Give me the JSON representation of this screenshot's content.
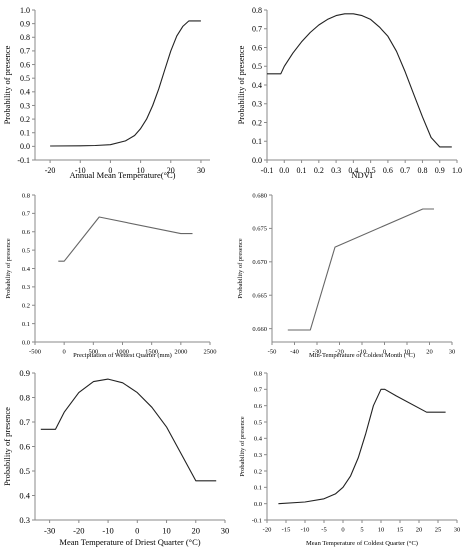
{
  "chart_data": [
    {
      "type": "line",
      "xlabel": "Annual Mean Temperature(°C)",
      "ylabel": "Probability of presence",
      "xlim": [
        -25,
        33
      ],
      "ylim": [
        -0.1,
        1.0
      ],
      "xticks": [
        -20,
        -10,
        0,
        10,
        20,
        30
      ],
      "yticks": [
        -0.1,
        0.0,
        0.1,
        0.2,
        0.3,
        0.4,
        0.5,
        0.6,
        0.7,
        0.8,
        0.9,
        1.0
      ],
      "x": [
        -20,
        -10,
        -5,
        0,
        5,
        8,
        10,
        12,
        14,
        16,
        18,
        20,
        22,
        24,
        26,
        30
      ],
      "y": [
        0.003,
        0.004,
        0.006,
        0.012,
        0.04,
        0.08,
        0.13,
        0.2,
        0.3,
        0.42,
        0.56,
        0.7,
        0.81,
        0.88,
        0.92,
        0.92
      ]
    },
    {
      "type": "line",
      "xlabel": "NDVI",
      "ylabel": "Probability of presence",
      "xlim": [
        -0.1,
        1.0
      ],
      "ylim": [
        0.0,
        0.8
      ],
      "xticks": [
        -0.1,
        0.0,
        0.1,
        0.2,
        0.3,
        0.4,
        0.5,
        0.6,
        0.7,
        0.8,
        0.9,
        1.0
      ],
      "yticks": [
        0.0,
        0.1,
        0.2,
        0.3,
        0.4,
        0.5,
        0.6,
        0.7,
        0.8
      ],
      "x": [
        -0.1,
        -0.02,
        0.0,
        0.05,
        0.1,
        0.15,
        0.2,
        0.25,
        0.3,
        0.35,
        0.4,
        0.45,
        0.5,
        0.55,
        0.6,
        0.65,
        0.7,
        0.75,
        0.8,
        0.85,
        0.9,
        0.97
      ],
      "y": [
        0.46,
        0.46,
        0.5,
        0.57,
        0.63,
        0.68,
        0.72,
        0.75,
        0.77,
        0.78,
        0.78,
        0.77,
        0.75,
        0.71,
        0.66,
        0.58,
        0.47,
        0.35,
        0.23,
        0.12,
        0.07,
        0.07
      ]
    },
    {
      "type": "line",
      "xlabel": "Precipitation of Wettest Quarter (mm)",
      "ylabel": "Probability of presence",
      "xlim": [
        -500,
        2500
      ],
      "ylim": [
        0.0,
        0.8
      ],
      "xticks": [
        -500,
        0,
        500,
        1000,
        1500,
        2000,
        2500
      ],
      "yticks": [
        0.0,
        0.1,
        0.2,
        0.3,
        0.4,
        0.5,
        0.6,
        0.7,
        0.8
      ],
      "x": [
        -100,
        0,
        600,
        2000,
        2200
      ],
      "y": [
        0.44,
        0.44,
        0.68,
        0.59,
        0.59
      ]
    },
    {
      "type": "line",
      "xlabel": "Min-Temperature of Coldest Month (°C)",
      "ylabel": "Probability of presence",
      "xlim": [
        -50,
        30
      ],
      "ylim": [
        0.658,
        0.68
      ],
      "xticks": [
        -50,
        -40,
        -30,
        -20,
        -10,
        0,
        10,
        20,
        30
      ],
      "yticks": [
        0.66,
        0.665,
        0.67,
        0.675,
        0.68
      ],
      "x": [
        -43,
        -33,
        -22,
        17,
        22
      ],
      "y": [
        0.6598,
        0.6598,
        0.6722,
        0.6779,
        0.6779
      ]
    },
    {
      "type": "line",
      "xlabel": "Mean Temperature of Driest Quarter (°C)",
      "ylabel": "Probability of presence",
      "xlim": [
        -35,
        30
      ],
      "ylim": [
        0.3,
        0.9
      ],
      "xticks": [
        -30,
        -20,
        -10,
        0,
        10,
        20,
        30
      ],
      "yticks": [
        0.3,
        0.4,
        0.5,
        0.6,
        0.7,
        0.8,
        0.9
      ],
      "x": [
        -33,
        -28,
        -25,
        -20,
        -15,
        -10,
        -5,
        0,
        5,
        10,
        15,
        20,
        23,
        27
      ],
      "y": [
        0.67,
        0.67,
        0.74,
        0.82,
        0.865,
        0.875,
        0.86,
        0.82,
        0.76,
        0.68,
        0.57,
        0.46,
        0.46,
        0.46
      ]
    },
    {
      "type": "line",
      "xlabel": "Mean Temperature of Coldest Quarter (°C)",
      "ylabel": "Probability of presence",
      "xlim": [
        -20,
        30
      ],
      "ylim": [
        -0.1,
        0.8
      ],
      "xticks": [
        -20,
        -15,
        -10,
        -5,
        0,
        5,
        10,
        15,
        20,
        25,
        30
      ],
      "yticks": [
        -0.1,
        0.0,
        0.1,
        0.2,
        0.3,
        0.4,
        0.5,
        0.6,
        0.7,
        0.8
      ],
      "x": [
        -17,
        -10,
        -5,
        -2,
        0,
        2,
        4,
        6,
        8,
        10,
        11,
        14,
        22,
        27
      ],
      "y": [
        0.0,
        0.01,
        0.03,
        0.06,
        0.1,
        0.17,
        0.28,
        0.43,
        0.6,
        0.7,
        0.7,
        0.66,
        0.56,
        0.56
      ]
    }
  ]
}
